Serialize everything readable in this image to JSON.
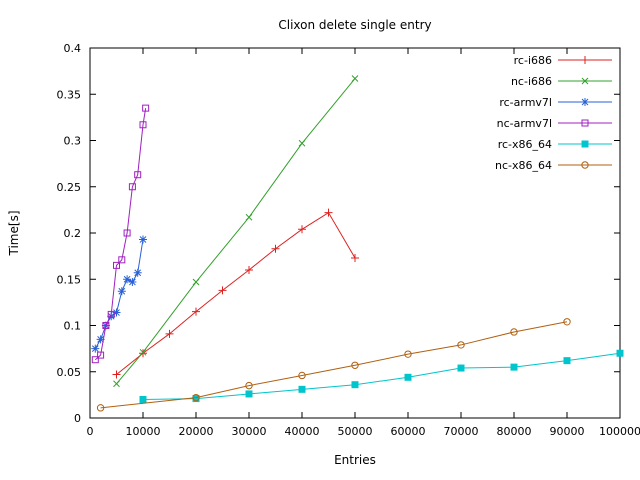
{
  "chart_data": {
    "type": "line",
    "title": "Clixon delete single entry",
    "xlabel": "Entries",
    "ylabel": "Time[s]",
    "xlim": [
      0,
      100000
    ],
    "ylim": [
      0,
      0.4
    ],
    "grid": false,
    "legend_position": "top-right-inside",
    "x_ticks": [
      0,
      10000,
      20000,
      30000,
      40000,
      50000,
      60000,
      70000,
      80000,
      90000,
      100000
    ],
    "x_tick_labels": [
      "0",
      "10000",
      "20000",
      "30000",
      "40000",
      "50000",
      "60000",
      "70000",
      "80000",
      "90000",
      "100000"
    ],
    "y_ticks": [
      0,
      0.05,
      0.1,
      0.15,
      0.2,
      0.25,
      0.3,
      0.35,
      0.4
    ],
    "y_tick_labels": [
      "0",
      "0.05",
      "0.1",
      "0.15",
      "0.2",
      "0.25",
      "0.3",
      "0.35",
      "0.4"
    ],
    "series": [
      {
        "name": "rc-i686",
        "color": "#dd2222",
        "marker": "plus",
        "x": [
          5000,
          10000,
          15000,
          20000,
          25000,
          30000,
          35000,
          40000,
          45000,
          50000
        ],
        "y": [
          0.047,
          0.07,
          0.091,
          0.115,
          0.138,
          0.16,
          0.183,
          0.204,
          0.222,
          0.173
        ]
      },
      {
        "name": "nc-i686",
        "color": "#33a02c",
        "marker": "cross",
        "x": [
          5000,
          10000,
          20000,
          30000,
          40000,
          50000
        ],
        "y": [
          0.037,
          0.071,
          0.147,
          0.217,
          0.297,
          0.367
        ]
      },
      {
        "name": "rc-armv7l",
        "color": "#2860d8",
        "marker": "star",
        "x": [
          1000,
          2000,
          3000,
          4000,
          5000,
          6000,
          7000,
          8000,
          9000,
          10000
        ],
        "y": [
          0.075,
          0.085,
          0.1,
          0.11,
          0.114,
          0.137,
          0.15,
          0.147,
          0.157,
          0.193
        ]
      },
      {
        "name": "nc-armv7l",
        "color": "#a020c0",
        "marker": "square-open",
        "x": [
          1000,
          2000,
          3000,
          4000,
          5000,
          6000,
          7000,
          8000,
          9000,
          10000,
          10500
        ],
        "y": [
          0.063,
          0.068,
          0.1,
          0.112,
          0.165,
          0.171,
          0.2,
          0.25,
          0.263,
          0.317,
          0.335
        ]
      },
      {
        "name": "rc-x86_64",
        "color": "#00c5cd",
        "marker": "square-filled",
        "x": [
          10000,
          20000,
          30000,
          40000,
          50000,
          60000,
          70000,
          80000,
          90000,
          100000
        ],
        "y": [
          0.02,
          0.021,
          0.026,
          0.031,
          0.036,
          0.044,
          0.054,
          0.055,
          0.062,
          0.07
        ]
      },
      {
        "name": "nc-x86_64",
        "color": "#b06010",
        "marker": "circle-open",
        "x": [
          2000,
          20000,
          30000,
          40000,
          50000,
          60000,
          70000,
          80000,
          90000
        ],
        "y": [
          0.011,
          0.022,
          0.035,
          0.046,
          0.057,
          0.069,
          0.079,
          0.093,
          0.104
        ]
      }
    ]
  }
}
